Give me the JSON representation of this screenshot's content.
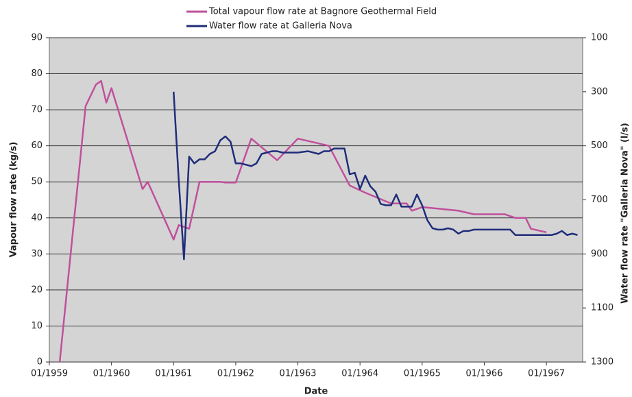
{
  "chart_data": {
    "type": "line",
    "xlabel": "Date",
    "ylabel": "Vapour flow rate (kg/s)",
    "y2label": "Water flow rate \"Galleria Nova\" (l/s)",
    "xlim": [
      "1959-01",
      "1967-08"
    ],
    "xticks": [
      {
        "value": "1959-01",
        "label": "01/1959"
      },
      {
        "value": "1960-01",
        "label": "01/1960"
      },
      {
        "value": "1961-01",
        "label": "01/1961"
      },
      {
        "value": "1962-01",
        "label": "01/1962"
      },
      {
        "value": "1963-01",
        "label": "01/1963"
      },
      {
        "value": "1964-01",
        "label": "01/1964"
      },
      {
        "value": "1965-01",
        "label": "01/1965"
      },
      {
        "value": "1966-01",
        "label": "01/1966"
      },
      {
        "value": "1967-01",
        "label": "01/1967"
      }
    ],
    "ylim": [
      0,
      90
    ],
    "yticks": [
      0,
      10,
      20,
      30,
      40,
      50,
      60,
      70,
      80,
      90
    ],
    "y2lim": [
      1300,
      100
    ],
    "y2ticks": [
      100,
      300,
      500,
      700,
      900,
      1100,
      1300
    ],
    "grid": true,
    "legend": "top",
    "series": [
      {
        "name": "Total vapour flow rate at Bagnore Geothermal Field",
        "color": "#c0509c",
        "x": [
          "1959-03",
          "1959-08",
          "1959-10",
          "1959-11",
          "1959-12",
          "1960-01",
          "1960-07",
          "1960-08",
          "1961-01",
          "1961-02",
          "1961-04",
          "1961-06",
          "1961-10",
          "1961-11",
          "1962-01",
          "1962-04",
          "1962-09",
          "1963-01",
          "1963-07",
          "1963-11",
          "1964-02",
          "1964-07",
          "1964-10",
          "1964-11",
          "1965-01",
          "1965-08",
          "1965-11",
          "1966-05",
          "1966-07",
          "1966-09",
          "1966-10",
          "1967-01"
        ],
        "values": [
          0,
          71,
          77,
          78,
          72,
          76,
          48,
          50,
          34,
          38,
          37,
          50,
          50,
          49.8,
          49.8,
          62,
          56,
          62,
          60,
          49,
          47,
          44,
          44,
          42,
          43,
          42,
          41,
          41,
          40,
          40,
          37,
          36
        ]
      },
      {
        "name": "Water flow rate at Galleria Nova",
        "color": "#1f2d7a",
        "axis": "y2",
        "x": [
          "1961-01",
          "1961-02",
          "1961-03",
          "1961-04",
          "1961-05",
          "1961-06",
          "1961-07",
          "1961-08",
          "1961-09",
          "1961-10",
          "1961-11",
          "1961-12",
          "1962-01",
          "1962-02",
          "1962-04",
          "1962-05",
          "1962-06",
          "1962-07",
          "1962-08",
          "1962-09",
          "1962-10",
          "1963-01",
          "1963-03",
          "1963-05",
          "1963-06",
          "1963-07",
          "1963-08",
          "1963-10",
          "1963-11",
          "1963-12",
          "1964-01",
          "1964-02",
          "1964-03",
          "1964-04",
          "1964-05",
          "1964-06",
          "1964-07",
          "1964-08",
          "1964-09",
          "1964-11",
          "1964-12",
          "1965-01",
          "1965-02",
          "1965-03",
          "1965-04",
          "1965-05",
          "1965-06",
          "1965-07",
          "1965-08",
          "1965-09",
          "1965-10",
          "1965-11",
          "1966-06",
          "1966-07",
          "1967-02",
          "1967-03",
          "1967-04",
          "1967-05",
          "1967-06",
          "1967-07"
        ],
        "values": [
          300,
          630,
          920,
          540,
          565,
          550,
          550,
          530,
          520,
          480,
          465,
          485,
          565,
          565,
          575,
          565,
          530,
          525,
          520,
          520,
          525,
          525,
          520,
          530,
          520,
          520,
          510,
          510,
          605,
          600,
          660,
          610,
          650,
          670,
          715,
          720,
          720,
          680,
          725,
          725,
          680,
          720,
          775,
          805,
          810,
          810,
          805,
          810,
          825,
          815,
          815,
          810,
          810,
          830,
          830,
          825,
          815,
          830,
          825,
          830
        ]
      }
    ]
  }
}
